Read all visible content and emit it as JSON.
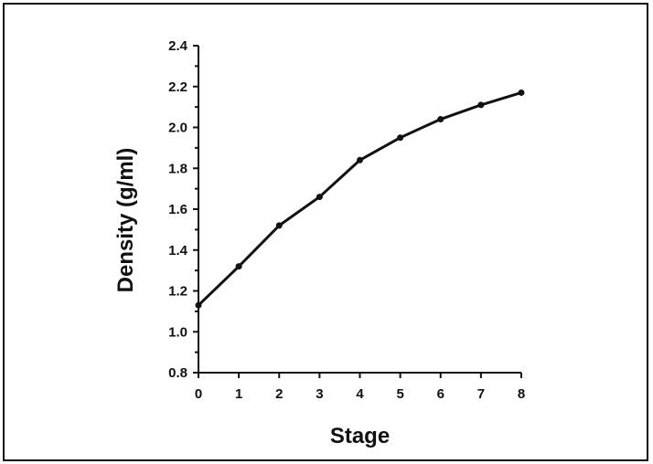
{
  "chart_data": {
    "type": "line",
    "title": "",
    "xlabel": "Stage",
    "ylabel": "Density (g/ml)",
    "x": [
      0,
      1,
      2,
      3,
      4,
      5,
      6,
      7,
      8
    ],
    "series": [
      {
        "values": [
          1.13,
          1.32,
          1.52,
          1.66,
          1.84,
          1.95,
          2.04,
          2.11,
          2.17
        ]
      }
    ],
    "xlim": [
      0,
      8
    ],
    "ylim": [
      0.8,
      2.4
    ],
    "xticks": [
      "0",
      "1",
      "2",
      "3",
      "4",
      "5",
      "6",
      "7",
      "8"
    ],
    "yticks": [
      "0.8",
      "1.0",
      "1.2",
      "1.4",
      "1.6",
      "1.8",
      "2.0",
      "2.2",
      "2.4"
    ],
    "grid": false,
    "legend": "none",
    "line_color": "#111111",
    "marker_color": "#111111"
  }
}
